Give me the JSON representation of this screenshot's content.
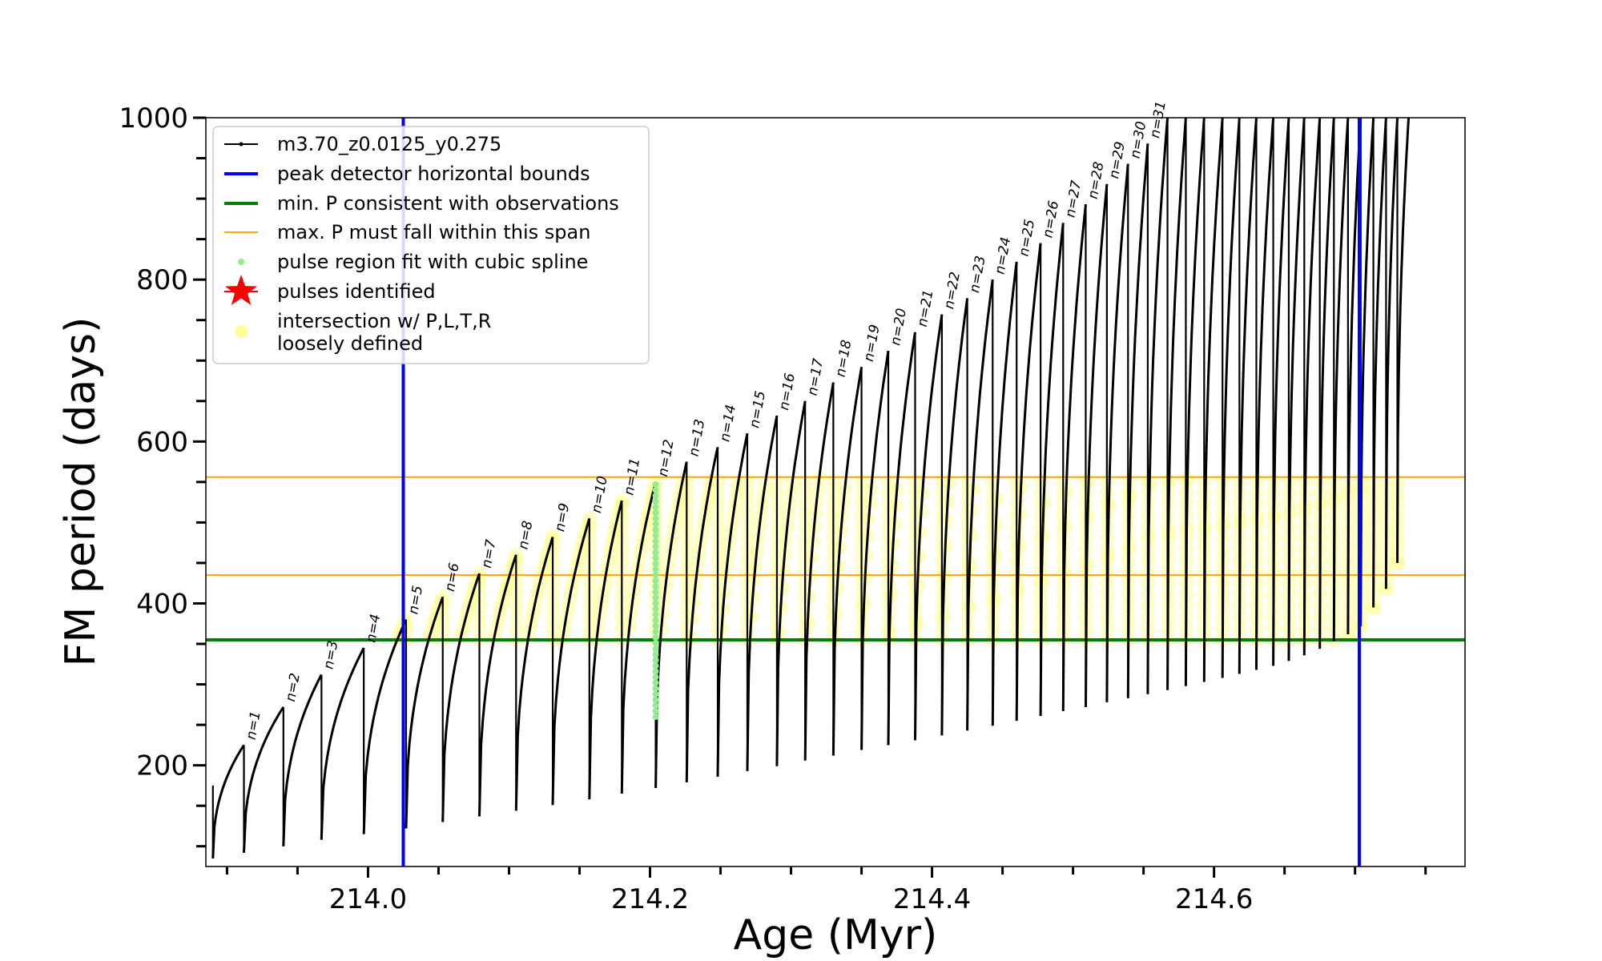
{
  "chart_data": {
    "type": "line",
    "xlabel": "Age (Myr)",
    "ylabel": "FM period (days)",
    "xlim": [
      213.885,
      214.778
    ],
    "ylim": [
      75,
      1000
    ],
    "x_ticks": [
      214.0,
      214.2,
      214.4,
      214.6
    ],
    "x_tick_labels": [
      "214.0",
      "214.2",
      "214.4",
      "214.6"
    ],
    "y_ticks": [
      200,
      400,
      600,
      800,
      1000
    ],
    "y_tick_labels": [
      "200",
      "400",
      "600",
      "800",
      "1000"
    ],
    "grid": false,
    "legend_position": "top-left",
    "legend": [
      {
        "label": "m3.70_z0.0125_y0.275",
        "kind": "line-dot",
        "color": "#000000"
      },
      {
        "label": "peak detector horizontal bounds",
        "kind": "line",
        "color": "#0000ff"
      },
      {
        "label": "min. P consistent with observations",
        "kind": "line",
        "color": "#008000"
      },
      {
        "label": "max. P must fall within this span",
        "kind": "thin-line",
        "color": "#ffa500"
      },
      {
        "label": "pulse region fit with cubic spline",
        "kind": "dot",
        "color": "#90ee90"
      },
      {
        "label": "pulses identified",
        "kind": "star",
        "color": "#ff0000"
      },
      {
        "label": "intersection w/ P,L,T,R\nloosely defined",
        "kind": "big-dot",
        "color": "#ffff99"
      }
    ],
    "vertical_lines": {
      "name": "peak detector horizontal bounds",
      "x": [
        214.025,
        214.703
      ],
      "color": "#0000ff"
    },
    "min_period_line": {
      "name": "min. P consistent with observations",
      "y": 355,
      "color": "#008000"
    },
    "max_period_span": {
      "name": "max. P must fall within this span",
      "y": [
        435,
        556
      ],
      "color": "#ffa500"
    },
    "spline_fit_pulse": {
      "x": 214.204,
      "y_range": [
        260,
        550
      ],
      "color": "#90ee90"
    },
    "series": [
      {
        "name": "m3.70_z0.0125_y0.275",
        "color": "#000000",
        "peaks": [
          {
            "x": 213.89,
            "min": 85,
            "max": 175
          },
          {
            "x": 213.912,
            "min": 92,
            "max": 225
          },
          {
            "x": 213.94,
            "min": 100,
            "max": 272
          },
          {
            "x": 213.967,
            "min": 108,
            "max": 312
          },
          {
            "x": 213.997,
            "min": 115,
            "max": 345
          },
          {
            "x": 214.027,
            "min": 122,
            "max": 380
          },
          {
            "x": 214.053,
            "min": 130,
            "max": 408
          },
          {
            "x": 214.079,
            "min": 137,
            "max": 437
          },
          {
            "x": 214.105,
            "min": 144,
            "max": 460
          },
          {
            "x": 214.131,
            "min": 151,
            "max": 482
          },
          {
            "x": 214.157,
            "min": 158,
            "max": 505
          },
          {
            "x": 214.18,
            "min": 165,
            "max": 527
          },
          {
            "x": 214.204,
            "min": 172,
            "max": 550
          },
          {
            "x": 214.226,
            "min": 179,
            "max": 575
          },
          {
            "x": 214.248,
            "min": 186,
            "max": 593
          },
          {
            "x": 214.269,
            "min": 193,
            "max": 610
          },
          {
            "x": 214.29,
            "min": 199,
            "max": 632
          },
          {
            "x": 214.31,
            "min": 206,
            "max": 650
          },
          {
            "x": 214.33,
            "min": 212,
            "max": 673
          },
          {
            "x": 214.35,
            "min": 219,
            "max": 692
          },
          {
            "x": 214.369,
            "min": 225,
            "max": 712
          },
          {
            "x": 214.388,
            "min": 231,
            "max": 735
          },
          {
            "x": 214.407,
            "min": 237,
            "max": 757
          },
          {
            "x": 214.425,
            "min": 243,
            "max": 777
          },
          {
            "x": 214.443,
            "min": 249,
            "max": 800
          },
          {
            "x": 214.46,
            "min": 255,
            "max": 822
          },
          {
            "x": 214.477,
            "min": 261,
            "max": 845
          },
          {
            "x": 214.493,
            "min": 267,
            "max": 870
          },
          {
            "x": 214.509,
            "min": 272,
            "max": 893
          },
          {
            "x": 214.524,
            "min": 278,
            "max": 918
          },
          {
            "x": 214.539,
            "min": 283,
            "max": 943
          },
          {
            "x": 214.553,
            "min": 288,
            "max": 968
          },
          {
            "x": 214.567,
            "min": 293,
            "max": 1000
          },
          {
            "x": 214.58,
            "min": 298,
            "max": 1000
          },
          {
            "x": 214.593,
            "min": 303,
            "max": 1000
          },
          {
            "x": 214.606,
            "min": 308,
            "max": 1000
          },
          {
            "x": 214.618,
            "min": 313,
            "max": 1000
          },
          {
            "x": 214.63,
            "min": 318,
            "max": 1000
          },
          {
            "x": 214.642,
            "min": 323,
            "max": 1000
          },
          {
            "x": 214.653,
            "min": 329,
            "max": 1000
          },
          {
            "x": 214.664,
            "min": 336,
            "max": 1000
          },
          {
            "x": 214.675,
            "min": 344,
            "max": 1000
          },
          {
            "x": 214.685,
            "min": 353,
            "max": 1000
          },
          {
            "x": 214.695,
            "min": 362,
            "max": 1000
          },
          {
            "x": 214.704,
            "min": 372,
            "max": 1000
          },
          {
            "x": 214.713,
            "min": 395,
            "max": 1000
          },
          {
            "x": 214.722,
            "min": 418,
            "max": 1000
          },
          {
            "x": 214.73,
            "min": 450,
            "max": 1000
          }
        ],
        "end": {
          "x": 214.738,
          "y": 1000
        }
      }
    ],
    "pulse_labels": [
      {
        "text": "n=1",
        "x": 213.912,
        "y": 225
      },
      {
        "text": "n=2",
        "x": 213.94,
        "y": 272
      },
      {
        "text": "n=3",
        "x": 213.967,
        "y": 312
      },
      {
        "text": "n=4",
        "x": 213.997,
        "y": 345
      },
      {
        "text": "n=5",
        "x": 214.027,
        "y": 380
      },
      {
        "text": "n=6",
        "x": 214.053,
        "y": 408
      },
      {
        "text": "n=7",
        "x": 214.079,
        "y": 437
      },
      {
        "text": "n=8",
        "x": 214.105,
        "y": 460
      },
      {
        "text": "n=9",
        "x": 214.131,
        "y": 482
      },
      {
        "text": "n=10",
        "x": 214.157,
        "y": 505
      },
      {
        "text": "n=11",
        "x": 214.18,
        "y": 527
      },
      {
        "text": "n=12",
        "x": 214.204,
        "y": 550
      },
      {
        "text": "n=13",
        "x": 214.226,
        "y": 575
      },
      {
        "text": "n=14",
        "x": 214.248,
        "y": 593
      },
      {
        "text": "n=15",
        "x": 214.269,
        "y": 610
      },
      {
        "text": "n=16",
        "x": 214.29,
        "y": 632
      },
      {
        "text": "n=17",
        "x": 214.31,
        "y": 650
      },
      {
        "text": "n=18",
        "x": 214.33,
        "y": 673
      },
      {
        "text": "n=19",
        "x": 214.35,
        "y": 692
      },
      {
        "text": "n=20",
        "x": 214.369,
        "y": 712
      },
      {
        "text": "n=21",
        "x": 214.388,
        "y": 735
      },
      {
        "text": "n=22",
        "x": 214.407,
        "y": 757
      },
      {
        "text": "n=23",
        "x": 214.425,
        "y": 777
      },
      {
        "text": "n=24",
        "x": 214.443,
        "y": 800
      },
      {
        "text": "n=25",
        "x": 214.46,
        "y": 822
      },
      {
        "text": "n=26",
        "x": 214.477,
        "y": 845
      },
      {
        "text": "n=27",
        "x": 214.493,
        "y": 870
      },
      {
        "text": "n=28",
        "x": 214.509,
        "y": 893
      },
      {
        "text": "n=29",
        "x": 214.524,
        "y": 918
      },
      {
        "text": "n=30",
        "x": 214.539,
        "y": 943
      },
      {
        "text": "n=31",
        "x": 214.553,
        "y": 968
      }
    ]
  }
}
